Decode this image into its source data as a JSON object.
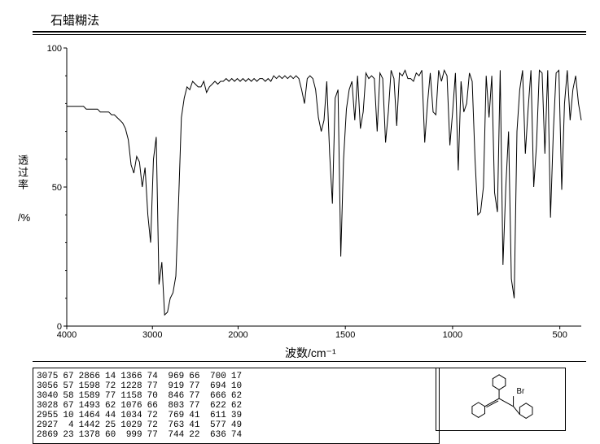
{
  "title": "石蜡糊法",
  "chart": {
    "type": "line",
    "x_label": "波数/cm⁻¹",
    "y_label_main": "透过率",
    "y_label_unit": "/%",
    "xlim": [
      4000,
      400
    ],
    "ylim": [
      0,
      100
    ],
    "xticks": [
      4000,
      3000,
      2000,
      1500,
      1000,
      500
    ],
    "yticks": [
      0,
      50,
      100
    ],
    "line_color": "#000000",
    "background": "#ffffff",
    "axis_color": "#000000",
    "line_width": 1,
    "points_y": [
      79,
      79,
      79,
      79,
      79,
      79,
      79,
      78,
      78,
      78,
      78,
      78,
      77,
      77,
      77,
      77,
      76,
      76,
      75,
      74,
      73,
      71,
      67,
      58,
      55,
      61,
      59,
      50,
      57,
      40,
      30,
      60,
      68,
      15,
      23,
      4,
      5,
      10,
      12,
      18,
      45,
      75,
      82,
      86,
      85,
      88,
      87,
      86,
      86,
      88,
      84,
      86,
      87,
      88,
      87,
      88,
      88,
      89,
      88,
      89,
      88,
      89,
      88,
      89,
      88,
      89,
      88,
      89,
      88,
      89,
      89,
      88,
      89,
      88,
      90,
      89,
      90,
      89,
      90,
      89,
      90,
      89,
      90,
      89,
      85,
      80,
      89,
      90,
      89,
      85,
      75,
      70,
      74,
      88,
      62,
      44,
      82,
      85,
      25,
      60,
      78,
      85,
      88,
      74,
      90,
      71,
      77,
      91,
      89,
      90,
      89,
      70,
      91,
      89,
      66,
      77,
      92,
      89,
      72,
      91,
      90,
      92,
      89,
      89,
      88,
      91,
      90,
      92,
      66,
      80,
      91,
      77,
      76,
      92,
      88,
      92,
      90,
      65,
      77,
      91,
      56,
      88,
      77,
      80,
      91,
      88,
      60,
      40,
      41,
      50,
      90,
      75,
      90,
      48,
      41,
      92,
      22,
      50,
      70,
      17,
      10,
      70,
      85,
      92,
      62,
      78,
      92,
      50,
      65,
      92,
      91,
      62,
      92,
      39,
      70,
      91,
      92,
      49,
      80,
      92,
      74,
      85,
      90,
      80,
      74
    ]
  },
  "peak_table": {
    "headers": [],
    "rows": [
      [
        "3075",
        "67",
        "2866",
        "14",
        "1366",
        "74",
        " 969",
        "66",
        " 700",
        "17"
      ],
      [
        "3056",
        "57",
        "1598",
        "72",
        "1228",
        "77",
        " 919",
        "77",
        " 694",
        "10"
      ],
      [
        "3040",
        "58",
        "1589",
        "77",
        "1158",
        "70",
        " 846",
        "77",
        " 666",
        "62"
      ],
      [
        "3028",
        "67",
        "1493",
        "62",
        "1076",
        "66",
        " 803",
        "77",
        " 622",
        "62"
      ],
      [
        "2955",
        "10",
        "1464",
        "44",
        "1034",
        "72",
        " 769",
        "41",
        " 611",
        "39"
      ],
      [
        "2927",
        " 4",
        "1442",
        "25",
        "1029",
        "72",
        " 763",
        "41",
        " 577",
        "49"
      ],
      [
        "2869",
        "23",
        "1378",
        "60",
        " 999",
        "77",
        " 744",
        "22",
        " 636",
        "74"
      ]
    ],
    "font_size": 11
  },
  "structure": {
    "label": "Br",
    "atom_color": "#000000"
  }
}
